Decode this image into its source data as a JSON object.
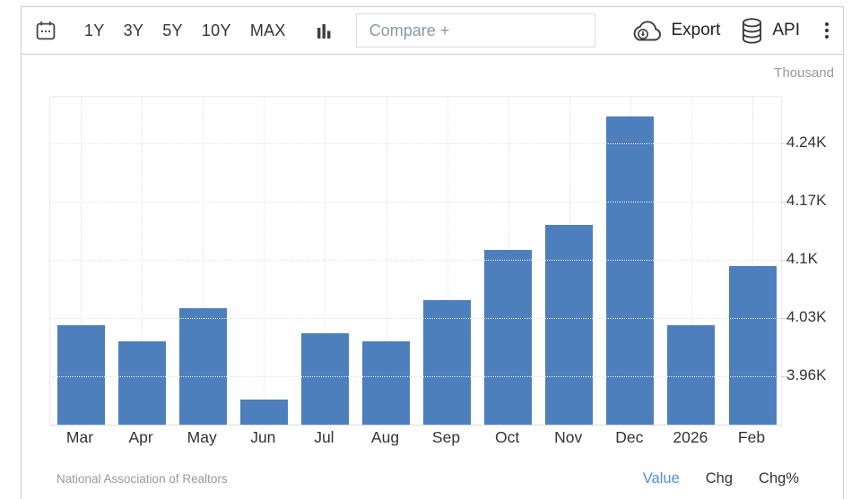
{
  "toolbar": {
    "calendar_icon": "calendar-icon",
    "ranges": [
      "1Y",
      "3Y",
      "5Y",
      "10Y",
      "MAX"
    ],
    "chart_type_icon": "bar-chart-icon",
    "compare_placeholder": "Compare +",
    "export": {
      "label": "Export",
      "icon": "cloud-download-icon"
    },
    "api": {
      "label": "API",
      "icon": "database-icon"
    },
    "menu_icon": "kebab-menu-icon"
  },
  "chart_data": {
    "type": "bar",
    "unit_label": "Thousand",
    "categories": [
      "Mar",
      "Apr",
      "May",
      "Jun",
      "Jul",
      "Aug",
      "Sep",
      "Oct",
      "Nov",
      "Dec",
      "2026",
      "Feb"
    ],
    "values": [
      4.02,
      4.0,
      4.04,
      3.93,
      4.01,
      4.0,
      4.05,
      4.11,
      4.14,
      4.27,
      4.02,
      4.09
    ],
    "yticks": [
      {
        "label": "4.24K",
        "value": 4.24
      },
      {
        "label": "4.17K",
        "value": 4.17
      },
      {
        "label": "4.1K",
        "value": 4.1
      },
      {
        "label": "4.03K",
        "value": 4.03
      },
      {
        "label": "3.96K",
        "value": 3.96
      }
    ],
    "ylim": [
      3.9,
      4.296
    ],
    "bar_color": "#4e7fbd",
    "grid": true,
    "legend": "none",
    "y_axis_side": "right"
  },
  "footer": {
    "source": "National Association of Realtors",
    "modes": [
      {
        "label": "Value",
        "active": true
      },
      {
        "label": "Chg",
        "active": false
      },
      {
        "label": "Chg%",
        "active": false
      }
    ],
    "active_color": "#4a90e2"
  }
}
